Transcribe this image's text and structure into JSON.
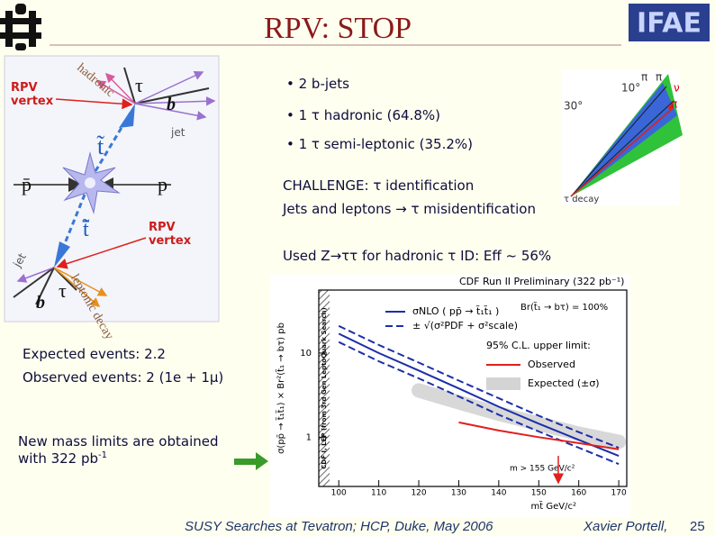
{
  "header": {
    "title": "RPV: STOP",
    "logo": "IFAE"
  },
  "diagram": {
    "labels": [
      "RPV vertex",
      "hadronic",
      "τ",
      "b",
      "jet",
      "t̃",
      "p̄",
      "p",
      "RPV vertex",
      "t̄̃",
      "jet",
      "leptonic decay",
      "τ",
      "b"
    ]
  },
  "bullets": [
    "2 b-jets",
    "1 τ hadronic (64.8%)",
    "1 τ semi-leptonic (35.2%)"
  ],
  "challenge": [
    "CHALLENGE: τ identification",
    "Jets and leptons → τ misidentification"
  ],
  "used": "Used Z→ττ for hadronic τ ID: Eff ~ 56%",
  "jet_figure": {
    "labels": [
      "30°",
      "10°",
      "π",
      "π",
      "ν",
      "π",
      "τ decay"
    ]
  },
  "events": [
    "Expected events: 2.2",
    "Observed events: 2 (1e + 1μ)"
  ],
  "limits": {
    "lines": [
      "New mass limits are obtained",
      "with 322 pb"
    ],
    "sup": "-1"
  },
  "plot": {
    "title": "CDF Run II Preliminary (322 pb⁻¹)",
    "x_label": "mt̃ GeV/c²",
    "y_label": "σ(pp̄ → t̃₁t̃₁) × Br²(t̃₁ → bτ) pb",
    "excluded_label": "CDF I, LEP (from 3rd Gen LeptoQuark Search)",
    "br_label": "Br(t̃₁ → bτ) = 100%",
    "legend_heading": "95% C.L. upper limit:",
    "limit_label": "m > 155 GeV/c²",
    "log_y": true,
    "xlim": [
      95,
      172
    ],
    "ylim": [
      0.26,
      56
    ],
    "xticks": [
      100,
      110,
      120,
      130,
      140,
      150,
      160,
      170
    ],
    "yticks": [
      1,
      10
    ],
    "x": [
      100,
      110,
      120,
      130,
      140,
      150,
      160,
      170
    ],
    "series": [
      {
        "name": "σNLO ( pp̄ → t̃₁t̃₁ )",
        "color": "#1c2fa8",
        "style": "solid",
        "values": [
          17,
          10,
          6.2,
          3.8,
          2.3,
          1.45,
          0.93,
          0.6
        ]
      },
      {
        "name": "± √(σ²PDF + σ²scale)",
        "color": "#1c2fa8",
        "style": "dashed",
        "values": [
          21,
          12.5,
          7.7,
          4.7,
          2.9,
          1.8,
          1.15,
          0.75
        ]
      },
      {
        "color": "#1c2fa8",
        "style": "dashed",
        "values": [
          13.5,
          8,
          5,
          3.05,
          1.85,
          1.17,
          0.75,
          0.48
        ]
      },
      {
        "name": "Observed",
        "color": "#e0201c",
        "style": "solid",
        "values": [
          null,
          null,
          null,
          1.5,
          1.2,
          1.0,
          0.85,
          0.72
        ]
      },
      {
        "name": "Expected (±σ)",
        "color": "#d4d4d4",
        "style": "band",
        "values": [
          null,
          null,
          3.6,
          2.6,
          1.9,
          1.45,
          1.1,
          0.88
        ]
      }
    ]
  },
  "footer": {
    "talk": "SUSY Searches at Tevatron; HCP, Duke, May 2006",
    "author": "Xavier Portell,",
    "page": "25"
  }
}
